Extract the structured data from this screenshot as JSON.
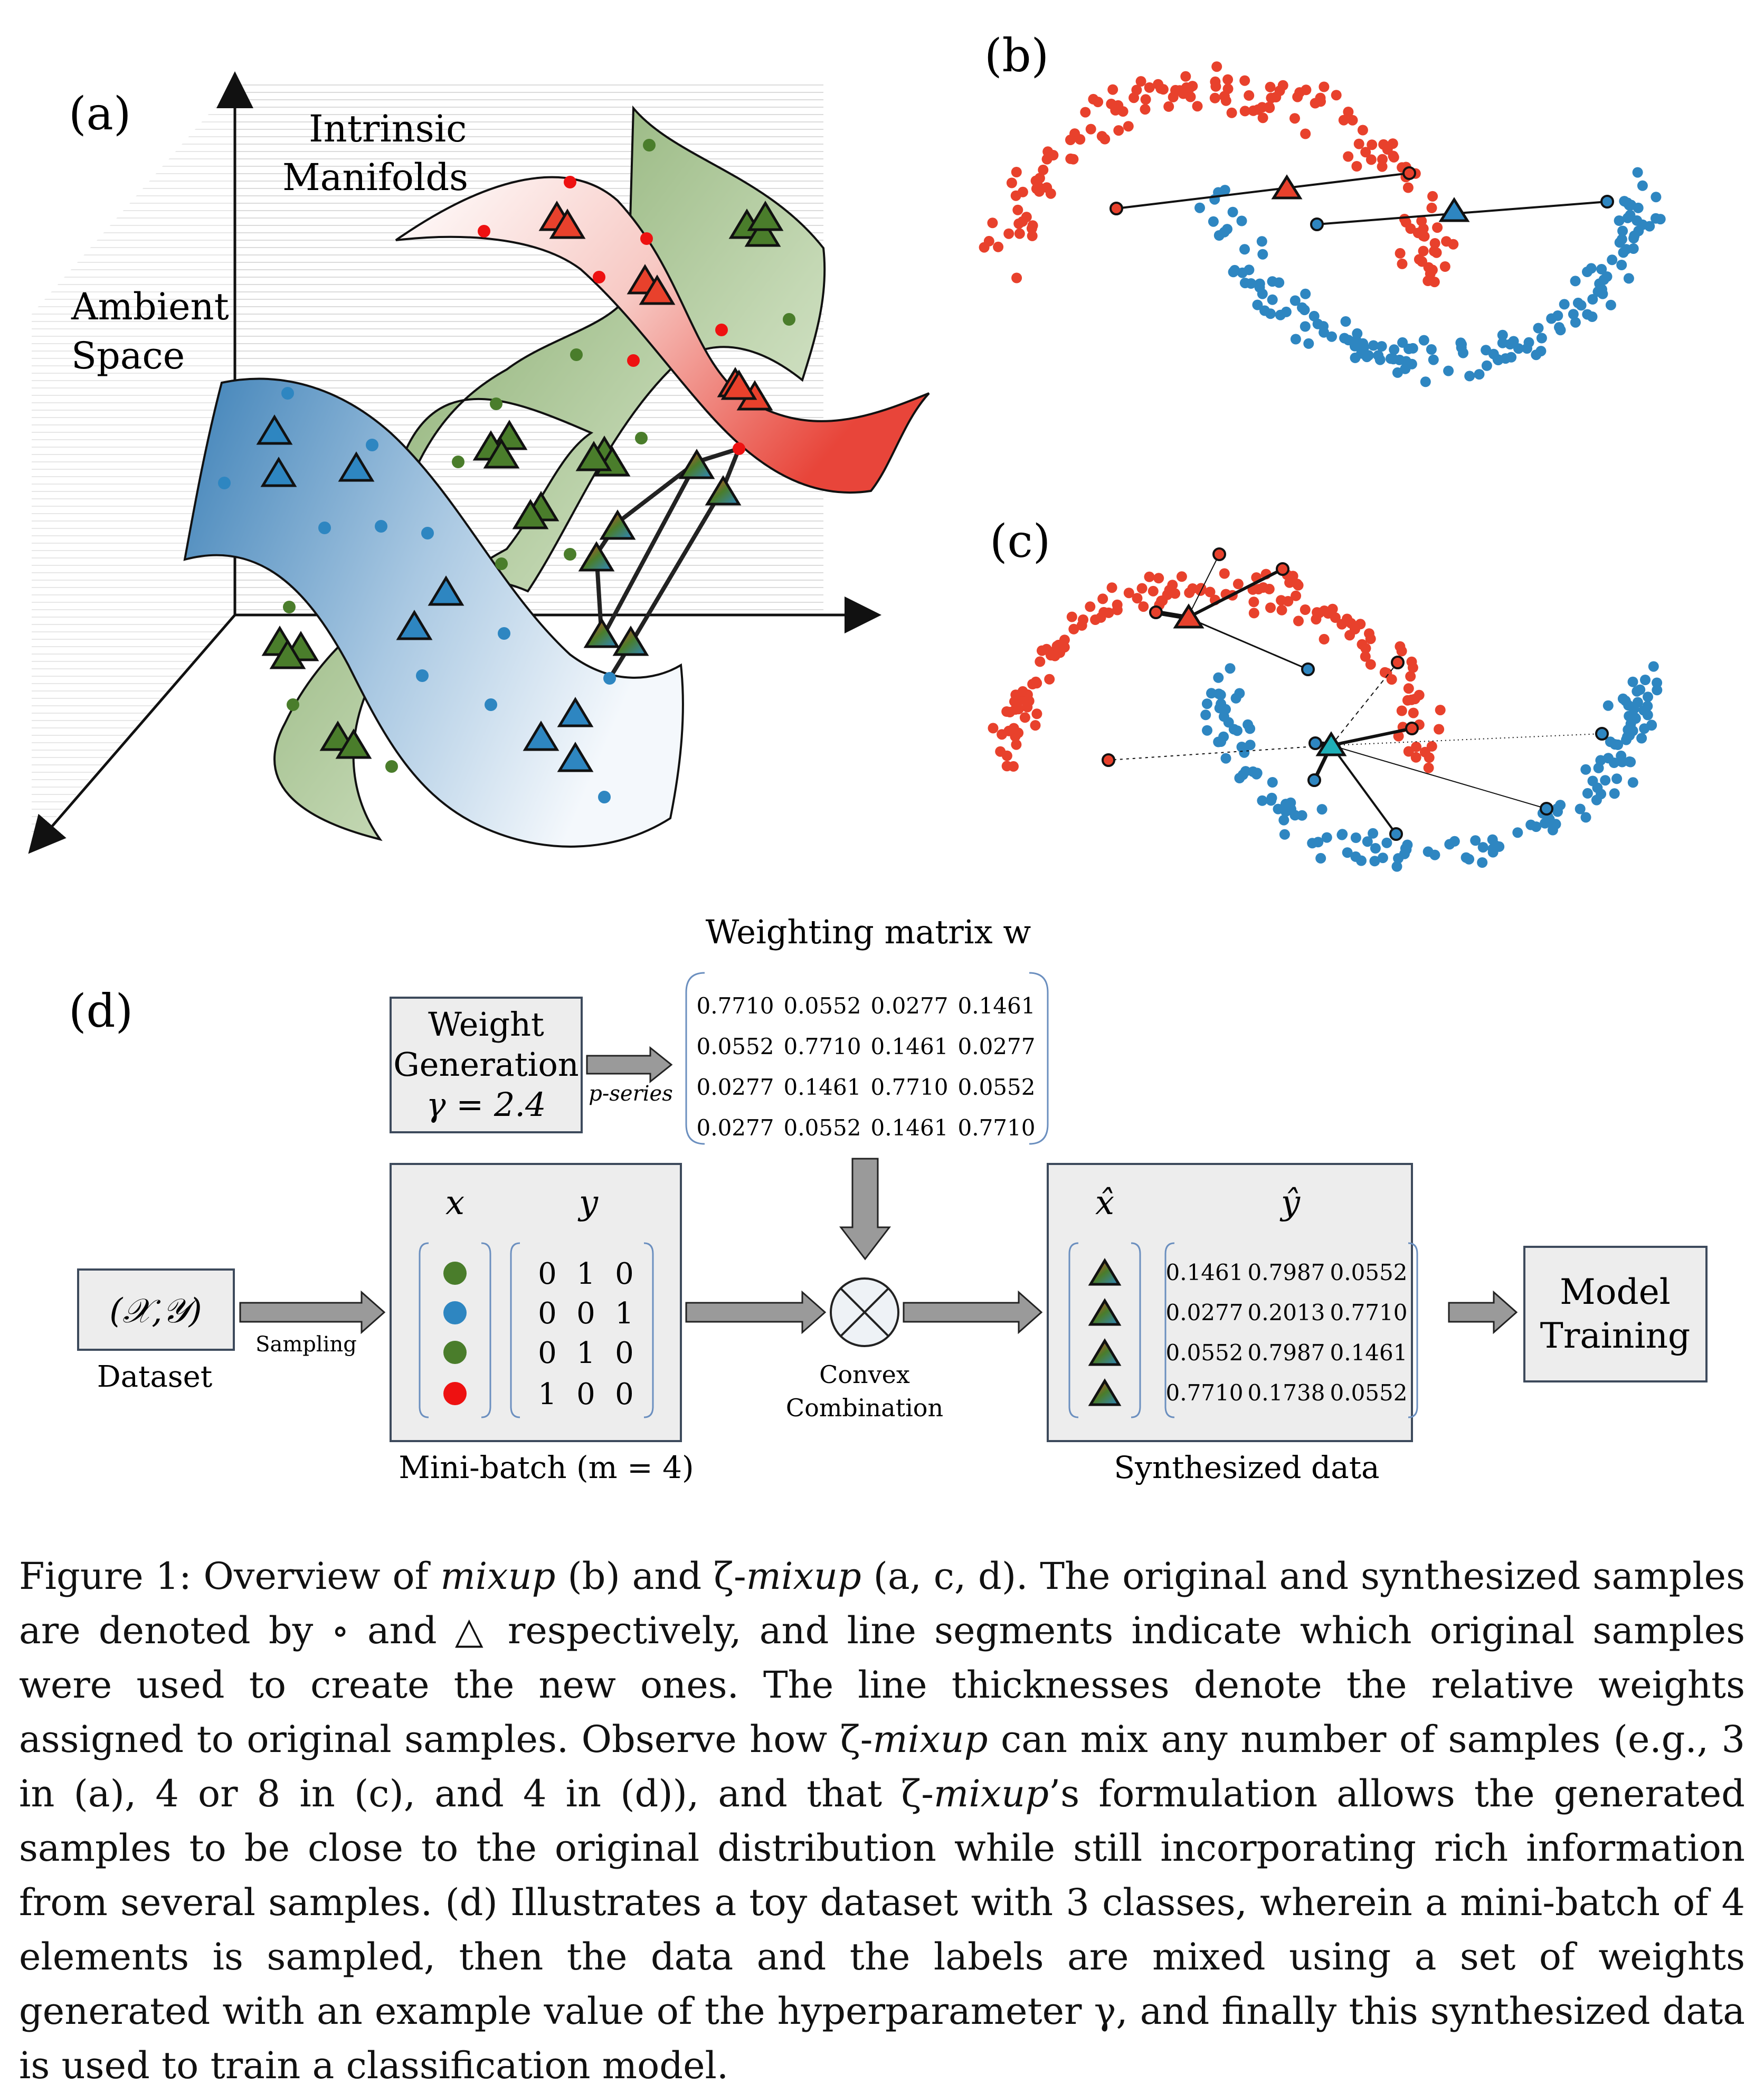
{
  "panel_a": {
    "label": "(a)",
    "ambient_line1": "Ambient",
    "ambient_line2": "Space",
    "intrinsic_line1": "Intrinsic",
    "intrinsic_line2": "Manifolds"
  },
  "panel_b": {
    "label": "(b)"
  },
  "panel_c": {
    "label": "(c)"
  },
  "panel_d": {
    "label": "(d)",
    "weight_generation": [
      "Weight",
      "Generation",
      "γ = 2.4"
    ],
    "p_series": "p-series",
    "weighting_matrix_title": "Weighting matrix  w",
    "weighting_matrix": [
      [
        "0.7710",
        "0.0552",
        "0.0277",
        "0.1461"
      ],
      [
        "0.0552",
        "0.7710",
        "0.1461",
        "0.0277"
      ],
      [
        "0.0277",
        "0.1461",
        "0.7710",
        "0.0552"
      ],
      [
        "0.0277",
        "0.0552",
        "0.1461",
        "0.7710"
      ]
    ],
    "dataset": "(𝒳,𝒴)",
    "dataset_label": "Dataset",
    "sampling": "Sampling",
    "x_header": "x",
    "y_header": "y",
    "minibatch_y": [
      [
        "0",
        "1",
        "0"
      ],
      [
        "0",
        "0",
        "1"
      ],
      [
        "0",
        "1",
        "0"
      ],
      [
        "1",
        "0",
        "0"
      ]
    ],
    "minibatch_colors": [
      "#4a7d2b",
      "#2e86c1",
      "#4a7d2b",
      "#ee1111"
    ],
    "minibatch_label": "Mini-batch (m = 4)",
    "convex_line1": "Convex",
    "convex_line2": "Combination",
    "xhat_header": "x̂",
    "yhat_header": "ŷ",
    "synth_y": [
      [
        "0.1461",
        "0.7987",
        "0.0552"
      ],
      [
        "0.0277",
        "0.2013",
        "0.7710"
      ],
      [
        "0.0552",
        "0.7987",
        "0.1461"
      ],
      [
        "0.7710",
        "0.1738",
        "0.0552"
      ]
    ],
    "synth_label": "Synthesized data",
    "model_line1": "Model",
    "model_line2": "Training"
  },
  "colors": {
    "red": "#e8412c",
    "blue": "#2e86c1",
    "green": "#4a7d2b",
    "box_fill": "#ededed",
    "box_stroke": "#3d4a5c",
    "arrow_fill": "#9a9a9a"
  },
  "caption": {
    "p1": "Figure 1: Overview of ",
    "e1": "mixup",
    "p2": " (b) and ζ-",
    "e2": "mixup",
    "p3": " (a, c, d). The original and synthesized samples are denoted by ∘ and △ respectively, and line segments indicate which original samples were used to create the new ones. The line thicknesses denote the relative weights assigned to original samples. Observe how ζ-",
    "e3": "mixup",
    "p4": " can mix any number of samples (e.g., 3 in (a), 4 or 8 in (c), and 4 in (d)), and that ζ-",
    "e4": "mixup",
    "p5": "’s formulation allows the generated samples to be close to the original distribution while still incorporating rich information from several samples. (d) Illustrates a toy dataset with 3 classes, wherein a mini-batch of 4 elements is sampled, then the data and the labels are mixed using a set of weights generated with an example value of the hyperparameter γ, and finally this synthesized data is used to train a classification model."
  }
}
